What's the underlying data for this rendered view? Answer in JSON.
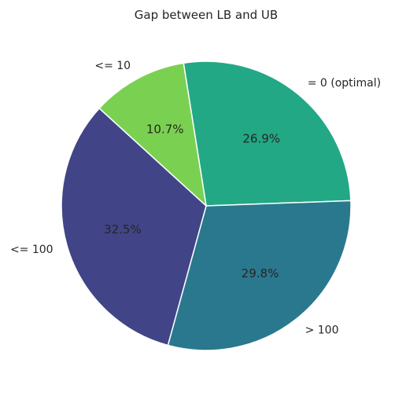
{
  "chart_data": {
    "type": "pie",
    "title": "Gap between LB and UB",
    "categories": [
      "= 0 (optimal)",
      "> 100",
      "<= 100",
      "<= 10"
    ],
    "values": [
      26.9,
      29.8,
      32.5,
      10.7
    ],
    "value_labels": [
      "26.9%",
      "29.8%",
      "32.5%",
      "10.7%"
    ],
    "colors": [
      "#22a884",
      "#2a788e",
      "#414487",
      "#7ad151"
    ],
    "edge_color": "#ffffff",
    "start_angle_deg": 99,
    "direction": "clockwise",
    "legend": "none"
  }
}
